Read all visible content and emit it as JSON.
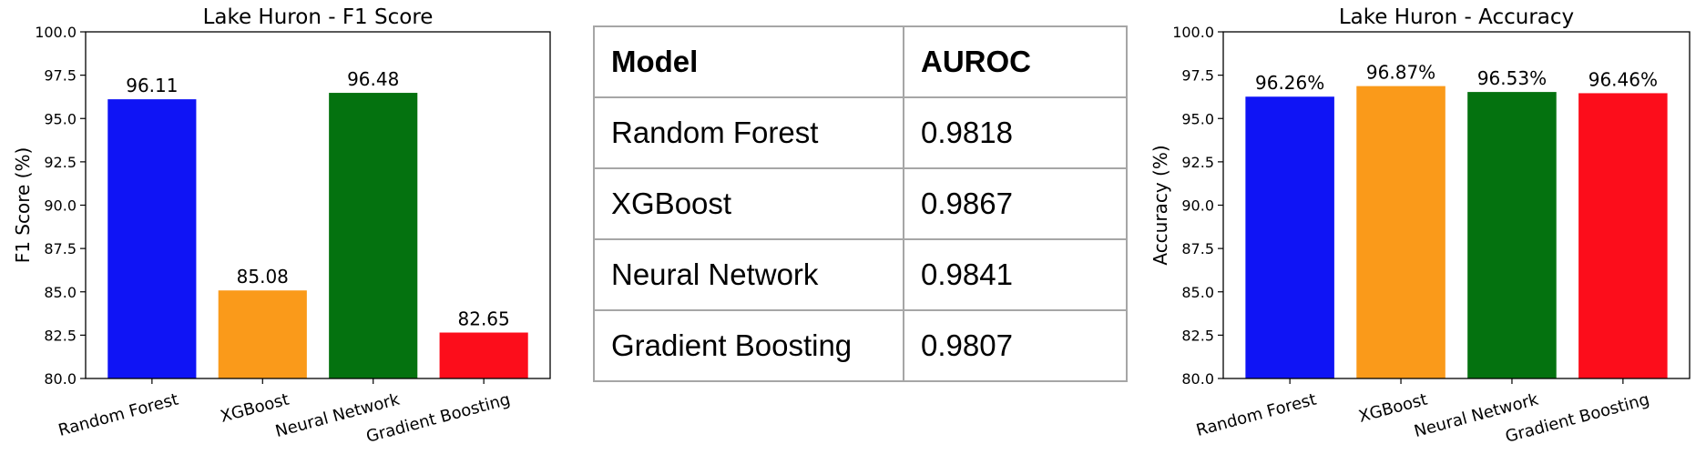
{
  "chart_data": [
    {
      "type": "bar",
      "title": "Lake Huron - F1 Score",
      "xlabel": "",
      "ylabel": "F1 Score (%)",
      "categories": [
        "Random Forest",
        "XGBoost",
        "Neural Network",
        "Gradient Boosting"
      ],
      "values": [
        96.11,
        85.08,
        96.48,
        82.65
      ],
      "data_labels": [
        "96.11",
        "85.08",
        "96.48",
        "82.65"
      ],
      "colors": [
        "#0f14f5",
        "#fa9a1a",
        "#04720f",
        "#fc0d1b"
      ],
      "ylim": [
        80.0,
        100.0
      ],
      "yticks": [
        "80.0",
        "82.5",
        "85.0",
        "87.5",
        "90.0",
        "92.5",
        "95.0",
        "97.5",
        "100.0"
      ],
      "grid": false
    },
    {
      "type": "bar",
      "title": "Lake Huron - Accuracy",
      "xlabel": "",
      "ylabel": "Accuracy (%)",
      "categories": [
        "Random Forest",
        "XGBoost",
        "Neural Network",
        "Gradient Boosting"
      ],
      "values": [
        96.26,
        96.87,
        96.53,
        96.46
      ],
      "data_labels": [
        "96.26%",
        "96.87%",
        "96.53%",
        "96.46%"
      ],
      "colors": [
        "#0f14f5",
        "#fa9a1a",
        "#04720f",
        "#fc0d1b"
      ],
      "ylim": [
        80.0,
        100.0
      ],
      "yticks": [
        "80.0",
        "82.5",
        "85.0",
        "87.5",
        "90.0",
        "92.5",
        "95.0",
        "97.5",
        "100.0"
      ],
      "grid": false
    }
  ],
  "table": {
    "headers": [
      "Model",
      "AUROC"
    ],
    "rows": [
      [
        "Random Forest",
        "0.9818"
      ],
      [
        "XGBoost",
        "0.9867"
      ],
      [
        "Neural Network",
        "0.9841"
      ],
      [
        "Gradient Boosting",
        "0.9807"
      ]
    ]
  }
}
